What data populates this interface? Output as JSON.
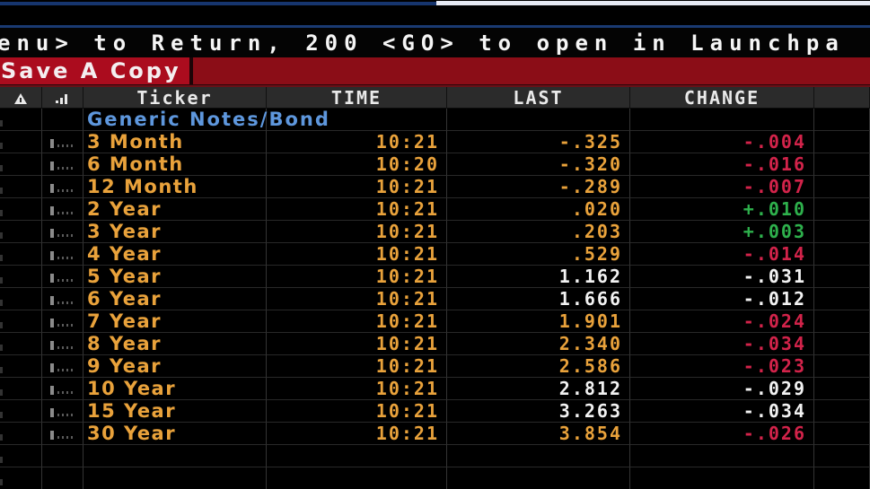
{
  "message_bar": {
    "text": "enu> to Return, 200 <GO> to open in Launchpa"
  },
  "toolbar": {
    "save_label": "Save A Copy"
  },
  "table": {
    "group_label": "Generic Notes/Bond",
    "header": {
      "ticker": "Ticker",
      "time": "TIME",
      "last": "LAST",
      "change": "CHANGE"
    },
    "rows": [
      {
        "ticker": "3 Month",
        "time": "10:21",
        "last": "-.325",
        "change": "-.004",
        "last_color": "orange",
        "change_color": "red"
      },
      {
        "ticker": "6 Month",
        "time": "10:20",
        "last": "-.320",
        "change": "-.016",
        "last_color": "orange",
        "change_color": "red"
      },
      {
        "ticker": "12 Month",
        "time": "10:21",
        "last": "-.289",
        "change": "-.007",
        "last_color": "orange",
        "change_color": "red"
      },
      {
        "ticker": "2 Year",
        "time": "10:21",
        "last": ".020",
        "change": "+.010",
        "last_color": "orange",
        "change_color": "green"
      },
      {
        "ticker": "3 Year",
        "time": "10:21",
        "last": ".203",
        "change": "+.003",
        "last_color": "orange",
        "change_color": "green"
      },
      {
        "ticker": "4 Year",
        "time": "10:21",
        "last": ".529",
        "change": "-.014",
        "last_color": "orange",
        "change_color": "red"
      },
      {
        "ticker": "5 Year",
        "time": "10:21",
        "last": "1.162",
        "change": "-.031",
        "last_color": "white",
        "change_color": "white"
      },
      {
        "ticker": "6 Year",
        "time": "10:21",
        "last": "1.666",
        "change": "-.012",
        "last_color": "white",
        "change_color": "white"
      },
      {
        "ticker": "7 Year",
        "time": "10:21",
        "last": "1.901",
        "change": "-.024",
        "last_color": "orange",
        "change_color": "red"
      },
      {
        "ticker": "8 Year",
        "time": "10:21",
        "last": "2.340",
        "change": "-.034",
        "last_color": "orange",
        "change_color": "red"
      },
      {
        "ticker": "9 Year",
        "time": "10:21",
        "last": "2.586",
        "change": "-.023",
        "last_color": "orange",
        "change_color": "red"
      },
      {
        "ticker": "10 Year",
        "time": "10:21",
        "last": "2.812",
        "change": "-.029",
        "last_color": "white",
        "change_color": "white"
      },
      {
        "ticker": "15 Year",
        "time": "10:21",
        "last": "3.263",
        "change": "-.034",
        "last_color": "white",
        "change_color": "white"
      },
      {
        "ticker": "30 Year",
        "time": "10:21",
        "last": "3.854",
        "change": "-.026",
        "last_color": "orange",
        "change_color": "red"
      }
    ]
  },
  "icons": {
    "alert_column": "alert-triangle-icon",
    "chart_column": "bar-chart-icon",
    "row_marker": "mini-bar-dots-icon"
  },
  "colors": {
    "accent-navy": "#16356e",
    "accent-light": "#e6eaf4",
    "red-left": "#ab0c1e",
    "red-right": "#8b0d17",
    "header-bg": "#2b2b2b",
    "header-text": "#e9e9e9",
    "orange": "#e9a23b",
    "white-val": "#f2f2f2",
    "red-val": "#d2234a",
    "green-val": "#2eb04c",
    "blue-label": "#5e97dd",
    "grid-v": "#343434",
    "grid-h": "#282828",
    "icon-gray": "#8b8b8b"
  }
}
